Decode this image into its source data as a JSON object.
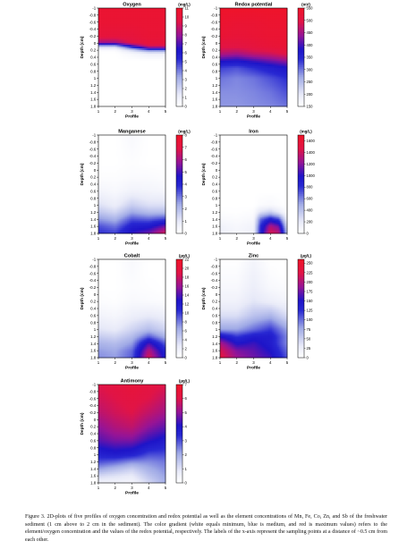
{
  "chart_data": [
    {
      "type": "heatmap",
      "title": "Oxygen",
      "unit": "(mg/L)",
      "xlabel": "Profile",
      "ylabel": "Depth (cm)",
      "xticks": [
        "1",
        "2",
        "3",
        "4",
        "5"
      ],
      "yticks": [
        "-1",
        "-0.8",
        "-0.6",
        "-0.4",
        "-0.2",
        "0",
        "0.2",
        "0.4",
        "0.6",
        "0.8",
        "1",
        "1.2",
        "1.4",
        "1.6",
        "1.8"
      ],
      "xlim": [
        1,
        5
      ],
      "ylim": [
        -1,
        1.8
      ],
      "colorbar_ticks": [
        "0",
        "1",
        "2",
        "3",
        "4",
        "5",
        "6",
        "7",
        "8",
        "9",
        "10",
        "11"
      ],
      "colorbar_range": [
        0,
        11
      ],
      "x": [
        1,
        2,
        3,
        4,
        5
      ],
      "depth": [
        -1,
        -0.6,
        -0.2,
        0,
        0.1,
        0.2,
        0.3,
        0.5,
        1.0,
        1.8
      ],
      "values": [
        [
          10.5,
          10.5,
          10.5,
          10.5,
          10.5
        ],
        [
          10.4,
          10.4,
          10.4,
          10.4,
          10.4
        ],
        [
          10.0,
          10.0,
          10.0,
          10.3,
          10.3
        ],
        [
          8.0,
          8.0,
          9.5,
          10.0,
          10.0
        ],
        [
          2.0,
          2.0,
          6.0,
          9.0,
          9.0
        ],
        [
          0.3,
          0.3,
          2.0,
          4.0,
          4.0
        ],
        [
          0,
          0,
          0.5,
          1.0,
          1.0
        ],
        [
          0,
          0,
          0,
          0,
          0
        ],
        [
          0,
          0,
          0,
          0,
          0
        ],
        [
          0,
          0,
          0,
          0,
          0
        ]
      ]
    },
    {
      "type": "heatmap",
      "title": "Redox potential",
      "unit": "(mV)",
      "xlabel": "Profile",
      "ylabel": "Depth (cm)",
      "xticks": [
        "1",
        "2",
        "3",
        "4",
        "5"
      ],
      "yticks": [
        "-1",
        "-0.8",
        "-0.6",
        "-0.4",
        "-0.2",
        "0",
        "0.2",
        "0.4",
        "0.6",
        "0.8",
        "1",
        "1.2",
        "1.4",
        "1.6",
        "1.8"
      ],
      "xlim": [
        1,
        5
      ],
      "ylim": [
        -1,
        1.8
      ],
      "colorbar_ticks": [
        "150",
        "200",
        "250",
        "300",
        "350",
        "400",
        "450",
        "500",
        "550"
      ],
      "colorbar_range": [
        150,
        550
      ],
      "x": [
        1,
        2,
        3,
        4,
        5
      ],
      "depth": [
        -1,
        -0.6,
        -0.2,
        0.1,
        0.3,
        0.5,
        0.7,
        1.0,
        1.4,
        1.8
      ],
      "values": [
        [
          545,
          545,
          545,
          545,
          545
        ],
        [
          535,
          530,
          530,
          535,
          535
        ],
        [
          525,
          520,
          525,
          530,
          530
        ],
        [
          500,
          500,
          510,
          520,
          525
        ],
        [
          460,
          450,
          470,
          480,
          500
        ],
        [
          390,
          380,
          400,
          420,
          440
        ],
        [
          330,
          320,
          340,
          360,
          380
        ],
        [
          300,
          290,
          300,
          320,
          340
        ],
        [
          285,
          285,
          290,
          300,
          320
        ],
        [
          280,
          280,
          285,
          290,
          300
        ]
      ]
    },
    {
      "type": "heatmap",
      "title": "Manganese",
      "unit": "(mg/L)",
      "xlabel": "Profile",
      "ylabel": "Depth (cm)",
      "xticks": [
        "1",
        "2",
        "3",
        "4",
        "5"
      ],
      "yticks": [
        "-1",
        "-0.8",
        "-0.6",
        "-0.4",
        "-0.2",
        "0",
        "0.2",
        "0.4",
        "0.6",
        "0.8",
        "1",
        "1.2",
        "1.4",
        "1.6",
        "1.8"
      ],
      "xlim": [
        1,
        5
      ],
      "ylim": [
        -1,
        1.8
      ],
      "colorbar_ticks": [
        "0",
        "1",
        "2",
        "3",
        "4",
        "5",
        "6",
        "7",
        "8"
      ],
      "colorbar_range": [
        0,
        8
      ],
      "x": [
        1,
        2,
        3,
        4,
        5
      ],
      "depth": [
        -1,
        -0.6,
        -0.2,
        0.2,
        0.6,
        1.0,
        1.2,
        1.4,
        1.6,
        1.8
      ],
      "values": [
        [
          0,
          0,
          0.3,
          0,
          0
        ],
        [
          0,
          0,
          0.2,
          0,
          0
        ],
        [
          0,
          0,
          0.1,
          0,
          0
        ],
        [
          0.1,
          0.1,
          0.2,
          0.2,
          0.1
        ],
        [
          0.5,
          0.3,
          0.6,
          0.5,
          0.4
        ],
        [
          1.2,
          0.8,
          1.6,
          1.2,
          1.2
        ],
        [
          1.8,
          1.4,
          2.4,
          2.0,
          2.0
        ],
        [
          2.6,
          2.2,
          3.4,
          3.2,
          3.6
        ],
        [
          3.4,
          3.0,
          4.2,
          4.4,
          5.4
        ],
        [
          3.8,
          3.6,
          4.8,
          5.4,
          6.8
        ]
      ]
    },
    {
      "type": "heatmap",
      "title": "Iron",
      "unit": "(mg/L)",
      "xlabel": "Profile",
      "ylabel": "Depth (cm)",
      "xticks": [
        "1",
        "2",
        "3",
        "4",
        "5"
      ],
      "yticks": [
        "-1",
        "-0.8",
        "-0.6",
        "-0.4",
        "-0.2",
        "0",
        "0.2",
        "0.4",
        "0.6",
        "0.8",
        "1",
        "1.2",
        "1.4",
        "1.6",
        "1.8"
      ],
      "xlim": [
        1,
        5
      ],
      "ylim": [
        -1,
        1.8
      ],
      "colorbar_ticks": [
        "0",
        "200",
        "400",
        "600",
        "800",
        "1000",
        "1200",
        "1400",
        "1600"
      ],
      "colorbar_range": [
        0,
        1700
      ],
      "x": [
        1,
        2,
        3,
        3.4,
        4,
        4.5,
        5
      ],
      "depth": [
        -1,
        0.6,
        1.0,
        1.2,
        1.4,
        1.6,
        1.8
      ],
      "values": [
        [
          0,
          0,
          0,
          0,
          0,
          0,
          0
        ],
        [
          0,
          0,
          0,
          0,
          0,
          0,
          0
        ],
        [
          0,
          0,
          0,
          40,
          60,
          30,
          0
        ],
        [
          20,
          10,
          30,
          250,
          350,
          200,
          20
        ],
        [
          60,
          40,
          70,
          650,
          900,
          750,
          120
        ],
        [
          120,
          70,
          120,
          800,
          1300,
          1150,
          280
        ],
        [
          150,
          90,
          140,
          850,
          1450,
          1350,
          400
        ]
      ]
    },
    {
      "type": "heatmap",
      "title": "Cobalt",
      "unit": "(µg/L)",
      "xlabel": "Profile",
      "ylabel": "Depth (cm)",
      "xticks": [
        "1",
        "2",
        "3",
        "4",
        "5"
      ],
      "yticks": [
        "-1",
        "-0.8",
        "-0.6",
        "-0.4",
        "-0.2",
        "0",
        "0.2",
        "0.4",
        "0.6",
        "0.8",
        "1",
        "1.2",
        "1.4",
        "1.6",
        "1.8"
      ],
      "xlim": [
        1,
        5
      ],
      "ylim": [
        -1,
        1.8
      ],
      "colorbar_ticks": [
        "0",
        "2",
        "4",
        "6",
        "8",
        "10",
        "12",
        "14",
        "16",
        "18",
        "20",
        "22"
      ],
      "colorbar_range": [
        0,
        22
      ],
      "x": [
        1,
        2,
        3,
        4,
        5
      ],
      "depth": [
        -1,
        -0.6,
        -0.2,
        0.2,
        0.6,
        1.0,
        1.2,
        1.4,
        1.6,
        1.8
      ],
      "values": [
        [
          0,
          0,
          0.8,
          0,
          0
        ],
        [
          0,
          0,
          0.6,
          0,
          0
        ],
        [
          0,
          0,
          0.4,
          0.2,
          0
        ],
        [
          0.4,
          0.2,
          0.8,
          0.6,
          0.4
        ],
        [
          1.5,
          1.0,
          2.0,
          2.5,
          2.0
        ],
        [
          3.0,
          2.5,
          4.0,
          5.5,
          4.0
        ],
        [
          4.5,
          4.0,
          5.5,
          9.0,
          6.0
        ],
        [
          6.0,
          5.5,
          7.0,
          14.0,
          9.0
        ],
        [
          7.0,
          6.5,
          8.5,
          17.0,
          11.0
        ],
        [
          7.5,
          7.0,
          9.0,
          18.5,
          12.0
        ]
      ]
    },
    {
      "type": "heatmap",
      "title": "Zinc",
      "unit": "(µg/L)",
      "xlabel": "Profile",
      "ylabel": "Depth (cm)",
      "xticks": [
        "1",
        "2",
        "3",
        "4",
        "5"
      ],
      "yticks": [
        "-1",
        "-0.8",
        "-0.6",
        "-0.4",
        "-0.2",
        "0",
        "0.2",
        "0.4",
        "0.6",
        "0.8",
        "1",
        "1.2",
        "1.4",
        "1.6",
        "1.8"
      ],
      "xlim": [
        1,
        5
      ],
      "ylim": [
        -1,
        1.8
      ],
      "colorbar_ticks": [
        "0",
        "25",
        "50",
        "75",
        "100",
        "125",
        "150",
        "175",
        "200",
        "225",
        "250"
      ],
      "colorbar_range": [
        0,
        260
      ],
      "x": [
        1,
        2,
        3,
        4,
        5
      ],
      "depth": [
        -1,
        -0.6,
        -0.2,
        0.2,
        0.6,
        1.0,
        1.2,
        1.4,
        1.6,
        1.8
      ],
      "values": [
        [
          0,
          0,
          15,
          0,
          0
        ],
        [
          5,
          5,
          20,
          5,
          0
        ],
        [
          10,
          10,
          25,
          10,
          5
        ],
        [
          20,
          20,
          35,
          25,
          15
        ],
        [
          40,
          40,
          60,
          70,
          40
        ],
        [
          80,
          80,
          100,
          120,
          80
        ],
        [
          150,
          120,
          140,
          140,
          90
        ],
        [
          200,
          150,
          160,
          140,
          90
        ],
        [
          220,
          180,
          170,
          150,
          100
        ],
        [
          230,
          190,
          175,
          160,
          110
        ]
      ]
    },
    {
      "type": "heatmap",
      "title": "Antimony",
      "unit": "(µg/L)",
      "xlabel": "Profile",
      "ylabel": "Depth (cm)",
      "xticks": [
        "1",
        "2",
        "3",
        "4",
        "5"
      ],
      "yticks": [
        "-1",
        "-0.8",
        "-0.6",
        "-0.4",
        "-0.2",
        "0",
        "0.2",
        "0.4",
        "0.6",
        "0.8",
        "1",
        "1.2",
        "1.4",
        "1.6",
        "1.8"
      ],
      "xlim": [
        1,
        5
      ],
      "ylim": [
        -1,
        1.8
      ],
      "colorbar_ticks": [
        "0",
        "1",
        "2",
        "3",
        "4",
        "5",
        "6",
        "7"
      ],
      "colorbar_range": [
        0,
        7
      ],
      "x": [
        1,
        2,
        3,
        4,
        5
      ],
      "depth": [
        -1,
        -0.6,
        -0.2,
        0.2,
        0.6,
        1.0,
        1.2,
        1.4,
        1.6,
        1.8
      ],
      "values": [
        [
          6.0,
          6.2,
          6.4,
          6.2,
          6.0
        ],
        [
          5.8,
          6.0,
          6.2,
          6.0,
          5.6
        ],
        [
          5.5,
          5.8,
          6.0,
          5.6,
          5.2
        ],
        [
          5.0,
          5.4,
          5.6,
          5.0,
          4.6
        ],
        [
          4.5,
          4.8,
          4.8,
          4.2,
          3.8
        ],
        [
          3.6,
          3.8,
          3.6,
          3.0,
          3.0
        ],
        [
          3.0,
          2.8,
          2.4,
          2.4,
          2.6
        ],
        [
          2.2,
          1.8,
          1.4,
          2.0,
          2.4
        ],
        [
          1.2,
          1.0,
          0.8,
          1.6,
          2.2
        ],
        [
          0.5,
          0.5,
          0.4,
          1.2,
          2.0
        ]
      ]
    }
  ],
  "caption": {
    "text": "Figure 3. 2D-plots of five profiles of oxygen concentration and redox potential as well as the element concentrations of Mn, Fe, Co, Zn, and Sb of the freshwater sediment (1 cm above to 2 cm in the sediment). The color gradient (white equals minimum, blue is medium, and red is maximum values) refers to the element/oxygen concentration and the values of the redox potential, respectively. The labels of the x-axis represent the sampling points at a distance of ~0.5 cm from each other."
  }
}
